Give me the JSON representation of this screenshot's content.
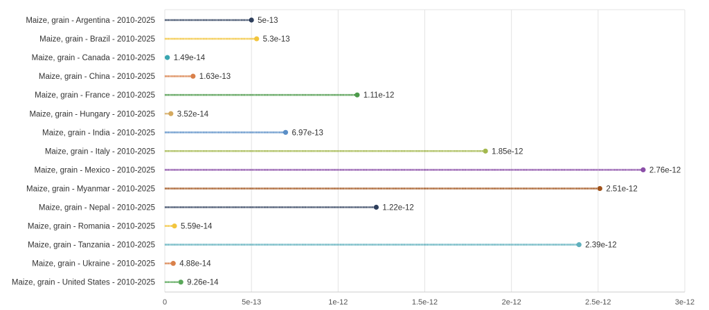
{
  "chart_data": {
    "type": "lollipop",
    "orientation": "horizontal",
    "title": "",
    "xlabel": "",
    "ylabel": "",
    "xlim": [
      0,
      3e-12
    ],
    "x_ticks": [
      "0",
      "5e-13",
      "1e-12",
      "1.5e-12",
      "2e-12",
      "2.5e-12",
      "3e-12"
    ],
    "x_tick_values": [
      0,
      5e-13,
      1e-12,
      1.5e-12,
      2e-12,
      2.5e-12,
      3e-12
    ],
    "grid": "vertical",
    "legend": "none",
    "categories": [
      "Maize, grain - Argentina - 2010-2025",
      "Maize, grain - Brazil - 2010-2025",
      "Maize, grain - Canada - 2010-2025",
      "Maize, grain - China - 2010-2025",
      "Maize, grain - France - 2010-2025",
      "Maize, grain - Hungary - 2010-2025",
      "Maize, grain - India - 2010-2025",
      "Maize, grain - Italy - 2010-2025",
      "Maize, grain - Mexico - 2010-2025",
      "Maize, grain - Myanmar - 2010-2025",
      "Maize, grain - Nepal - 2010-2025",
      "Maize, grain - Romania - 2010-2025",
      "Maize, grain - Tanzania - 2010-2025",
      "Maize, grain - Ukraine - 2010-2025",
      "Maize, grain - United States - 2010-2025"
    ],
    "values": [
      5e-13,
      5.3e-13,
      1.49e-14,
      1.63e-13,
      1.11e-12,
      3.52e-14,
      6.97e-13,
      1.85e-12,
      2.76e-12,
      2.51e-12,
      1.22e-12,
      5.59e-14,
      2.39e-12,
      4.88e-14,
      9.26e-14
    ],
    "value_labels": [
      "5e-13",
      "5.3e-13",
      "1.49e-14",
      "1.63e-13",
      "1.11e-12",
      "3.52e-14",
      "6.97e-13",
      "1.85e-12",
      "2.76e-12",
      "2.51e-12",
      "1.22e-12",
      "5.59e-14",
      "2.39e-12",
      "4.88e-14",
      "9.26e-14"
    ],
    "colors": [
      "#2e3f5c",
      "#f2c53d",
      "#3aa6b0",
      "#d9804a",
      "#4c9a4a",
      "#d4a95f",
      "#5b8fc7",
      "#a3b84e",
      "#8b4fa8",
      "#a0521a",
      "#2e3f5c",
      "#f2c53d",
      "#5fb0bd",
      "#d9804a",
      "#5aa85a"
    ]
  }
}
